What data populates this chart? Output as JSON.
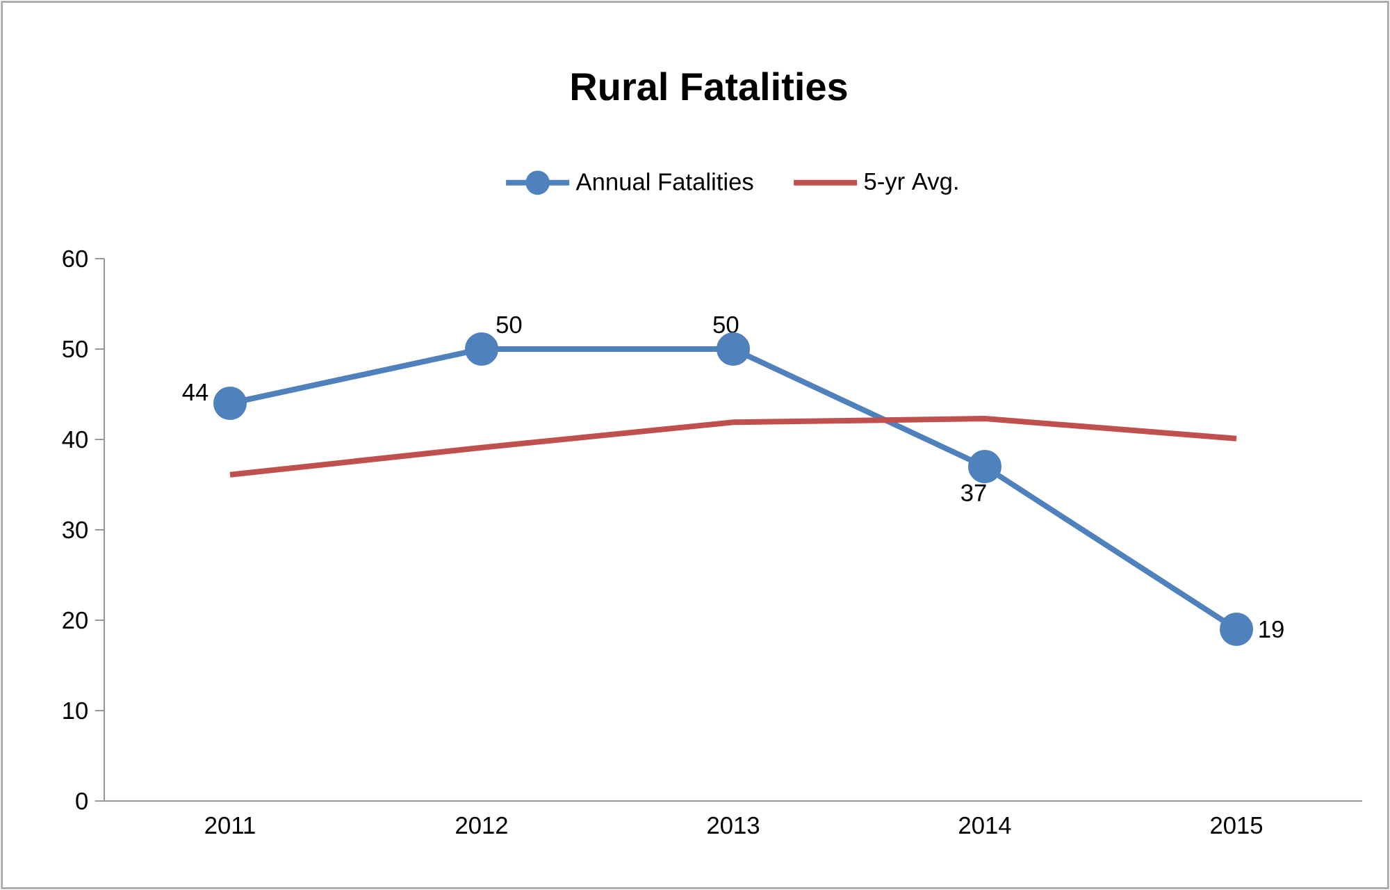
{
  "chart_data": {
    "type": "line",
    "title": "Rural Fatalities",
    "categories": [
      "2011",
      "2012",
      "2013",
      "2014",
      "2015"
    ],
    "series": [
      {
        "name": "Annual Fatalities",
        "color": "#4f81bd",
        "marker": "circle",
        "values": [
          44,
          50,
          50,
          37,
          19
        ],
        "value_labels": [
          "44",
          "50",
          "50",
          "37",
          "19"
        ]
      },
      {
        "name": "5-yr Avg.",
        "color": "#c0504d",
        "marker": "none",
        "values": [
          36.1,
          39.1,
          41.9,
          42.3,
          40.1
        ]
      }
    ],
    "ylim": [
      0,
      60
    ],
    "yticks": [
      0,
      10,
      20,
      30,
      40,
      50,
      60
    ],
    "legend": "top",
    "line_style": "solid"
  }
}
